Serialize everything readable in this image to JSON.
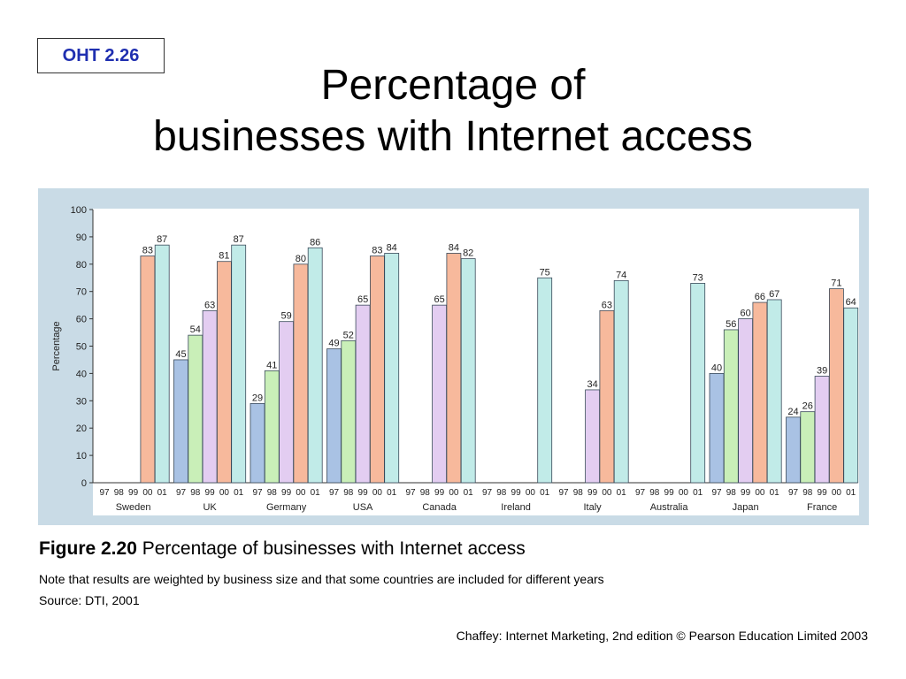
{
  "slide": {
    "label": "OHT 2.26",
    "title_line1": "Percentage of",
    "title_line2": "businesses with Internet access"
  },
  "caption": {
    "figure": "Figure 2.20",
    "text": "Percentage of businesses with Internet access"
  },
  "note": "Note that results are weighted by business size and that some countries are included for different years",
  "source": "Source: DTI, 2001",
  "credit": "Chaffey: Internet Marketing, 2nd edition © Pearson Education Limited 2003",
  "chart_data": {
    "type": "bar",
    "ylabel": "Percentage",
    "ylim": [
      0,
      100
    ],
    "yticks": [
      0,
      10,
      20,
      30,
      40,
      50,
      60,
      70,
      80,
      90,
      100
    ],
    "years": [
      "97",
      "98",
      "99",
      "00",
      "01"
    ],
    "year_colors": [
      "#a9c2e4",
      "#c9efb8",
      "#e3cdf1",
      "#f7b99c",
      "#c1ebe8"
    ],
    "groups": [
      {
        "name": "Sweden",
        "values": [
          null,
          null,
          null,
          83,
          87
        ]
      },
      {
        "name": "UK",
        "values": [
          45,
          54,
          63,
          81,
          87
        ]
      },
      {
        "name": "Germany",
        "values": [
          29,
          41,
          59,
          80,
          86
        ]
      },
      {
        "name": "USA",
        "values": [
          49,
          52,
          65,
          83,
          84
        ]
      },
      {
        "name": "Canada",
        "values": [
          null,
          null,
          65,
          84,
          82
        ]
      },
      {
        "name": "Ireland",
        "values": [
          null,
          null,
          null,
          null,
          75
        ]
      },
      {
        "name": "Italy",
        "values": [
          null,
          null,
          34,
          63,
          74
        ]
      },
      {
        "name": "Australia",
        "values": [
          null,
          null,
          null,
          null,
          73
        ]
      },
      {
        "name": "Japan",
        "values": [
          40,
          56,
          60,
          66,
          67
        ]
      },
      {
        "name": "France",
        "values": [
          24,
          26,
          39,
          71,
          64
        ]
      }
    ]
  }
}
